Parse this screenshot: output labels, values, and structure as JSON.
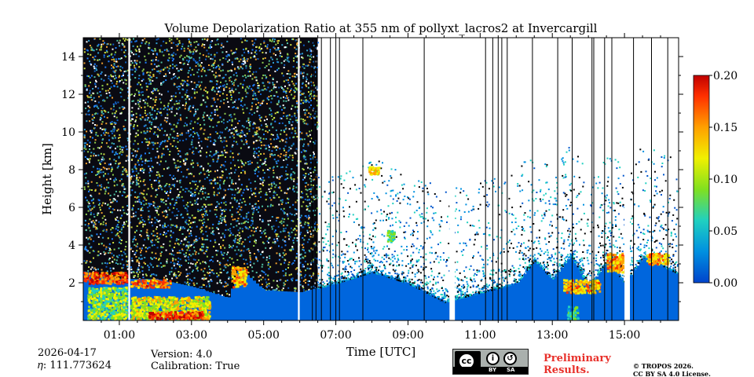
{
  "chart_data": {
    "type": "heatmap",
    "title": "Volume Depolarization Ratio at 355 nm of pollyxt_lacros2 at Invercargill",
    "xlabel": "Time [UTC]",
    "ylabel": "Height [km]",
    "xlim": [
      0,
      16.5
    ],
    "ylim": [
      0,
      15
    ],
    "x_ticks": [
      1,
      3,
      5,
      7,
      9,
      11,
      13,
      15
    ],
    "x_tick_labels": [
      "01:00",
      "03:00",
      "05:00",
      "07:00",
      "09:00",
      "11:00",
      "13:00",
      "15:00"
    ],
    "y_ticks": [
      2,
      4,
      6,
      8,
      10,
      12,
      14
    ],
    "y_tick_labels": [
      "2",
      "4",
      "6",
      "8",
      "10",
      "12",
      "14"
    ],
    "colorbar": {
      "range": [
        0.0,
        0.2
      ],
      "ticks": [
        0.0,
        0.05,
        0.1,
        0.15,
        0.2
      ],
      "tick_labels": [
        "0.00",
        "0.05",
        "0.10",
        "0.15",
        "0.20"
      ],
      "colormap": [
        "#0055cc",
        "#0090e0",
        "#20d0c0",
        "#80e020",
        "#f0f000",
        "#ffa000",
        "#ff3000",
        "#c00000"
      ]
    },
    "noisy_background_until_hour": 6.5,
    "no_data_gaps_hours": [
      [
        1.25,
        1.3
      ],
      [
        5.95,
        6.0
      ],
      [
        10.15,
        10.3
      ],
      [
        15.0,
        15.15
      ]
    ],
    "black_vertical_lines_hours": [
      6.35,
      6.45,
      6.6,
      6.85,
      7.0,
      7.1,
      7.75,
      9.45,
      11.15,
      11.35,
      11.5,
      11.6,
      11.75,
      12.45,
      13.15,
      13.55,
      14.1,
      14.15,
      14.45,
      14.65,
      15.25,
      15.75,
      16.2
    ],
    "boundary_layer_top_km": [
      [
        0,
        2.6
      ],
      [
        0.5,
        2.4
      ],
      [
        1.0,
        2.2
      ],
      [
        1.5,
        2.2
      ],
      [
        2.0,
        2.2
      ],
      [
        2.5,
        2.0
      ],
      [
        3.0,
        1.8
      ],
      [
        3.5,
        1.5
      ],
      [
        4.0,
        1.2
      ],
      [
        4.3,
        2.8
      ],
      [
        5.0,
        1.6
      ],
      [
        6.0,
        1.5
      ],
      [
        7.0,
        2.0
      ],
      [
        8.0,
        2.6
      ],
      [
        9.0,
        2.0
      ],
      [
        10.0,
        1.0
      ],
      [
        11.0,
        1.5
      ],
      [
        12.0,
        2.0
      ],
      [
        12.5,
        3.2
      ],
      [
        13.0,
        2.2
      ],
      [
        13.5,
        3.5
      ],
      [
        14.0,
        1.8
      ],
      [
        14.5,
        3.2
      ],
      [
        15.0,
        2.0
      ],
      [
        15.5,
        3.4
      ],
      [
        16.5,
        2.5
      ]
    ],
    "aerosol_patches": [
      {
        "x": [
          0.1,
          1.2
        ],
        "y": [
          0.1,
          1.8
        ],
        "value": 0.09
      },
      {
        "x": [
          1.3,
          3.5
        ],
        "y": [
          0.1,
          1.3
        ],
        "value": 0.11
      },
      {
        "x": [
          1.8,
          3.3
        ],
        "y": [
          0.1,
          0.5
        ],
        "value": 0.17
      },
      {
        "x": [
          0.0,
          1.2
        ],
        "y": [
          2.0,
          2.6
        ],
        "value": 0.16
      },
      {
        "x": [
          1.3,
          2.4
        ],
        "y": [
          1.8,
          2.2
        ],
        "value": 0.15
      },
      {
        "x": [
          4.1,
          4.5
        ],
        "y": [
          1.8,
          2.9
        ],
        "value": 0.13
      },
      {
        "x": [
          7.9,
          8.2
        ],
        "y": [
          7.8,
          8.2
        ],
        "value": 0.12
      },
      {
        "x": [
          8.4,
          8.6
        ],
        "y": [
          4.2,
          4.8
        ],
        "value": 0.08
      },
      {
        "x": [
          13.3,
          14.3
        ],
        "y": [
          1.5,
          2.2
        ],
        "value": 0.13
      },
      {
        "x": [
          14.5,
          15.0
        ],
        "y": [
          2.6,
          3.6
        ],
        "value": 0.14
      },
      {
        "x": [
          15.6,
          16.2
        ],
        "y": [
          3.0,
          3.6
        ],
        "value": 0.13
      },
      {
        "x": [
          13.4,
          13.7
        ],
        "y": [
          0.0,
          0.8
        ],
        "value": 0.07
      }
    ]
  },
  "meta": {
    "date": "2026-04-17",
    "eta_label": "𝜂: 111.773624",
    "version": "Version: 4.0",
    "calibration": "Calibration: True"
  },
  "footer": {
    "preliminary_line1": "Preliminary",
    "preliminary_line2": "Results.",
    "copyright_line1": "© TROPOS 2026.",
    "copyright_line2": "CC BY SA 4.0 License.",
    "badge_cc": "cc",
    "badge_by": "BY",
    "badge_sa": "SA"
  }
}
